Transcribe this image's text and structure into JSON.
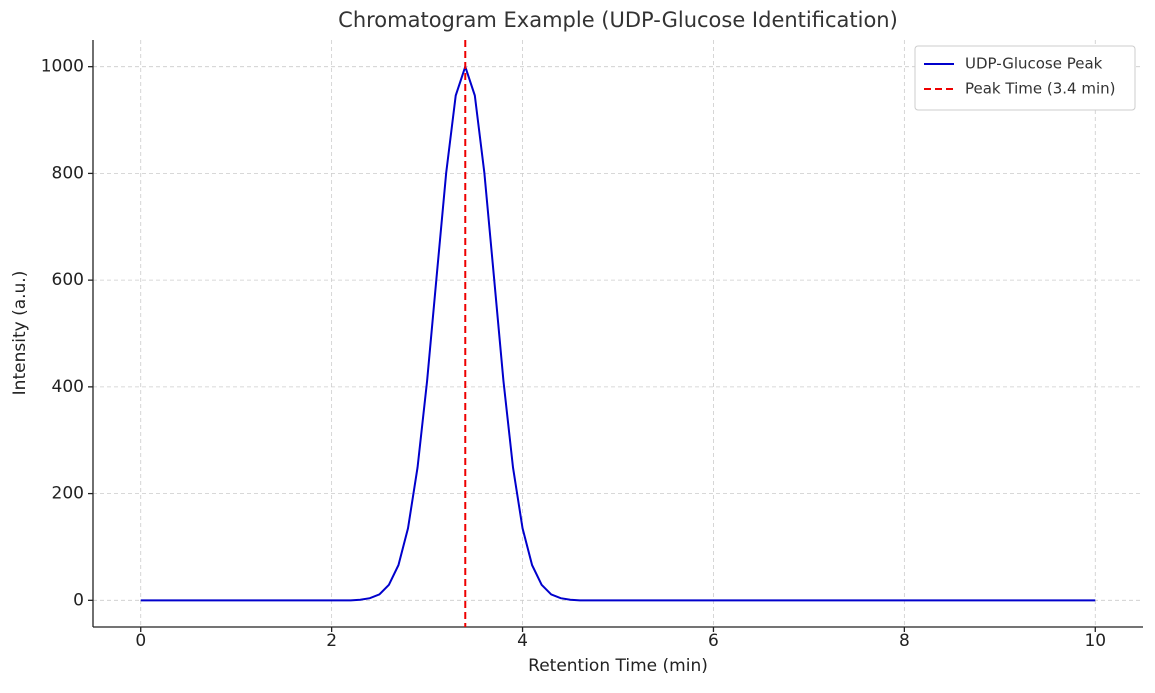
{
  "chart_data": {
    "type": "line",
    "title": "Chromatogram Example (UDP-Glucose Identification)",
    "x_label": "Retention Time (min)",
    "y_label": "Intensity (a.u.)",
    "x": [
      0,
      1,
      2,
      2.2,
      2.3,
      2.4,
      2.5,
      2.6,
      2.7,
      2.8,
      2.9,
      3.0,
      3.1,
      3.2,
      3.3,
      3.4,
      3.5,
      3.6,
      3.7,
      3.8,
      3.9,
      4.0,
      4.1,
      4.2,
      4.3,
      4.4,
      4.5,
      4.6,
      5,
      6,
      7,
      8,
      9,
      10
    ],
    "series": [
      {
        "name": "UDP-Glucose Peak",
        "color": "#0000cc",
        "values": [
          0,
          0,
          0,
          0,
          1,
          4,
          11,
          29,
          66,
          135,
          249,
          411,
          607,
          801,
          946,
          1000,
          946,
          801,
          607,
          411,
          249,
          135,
          66,
          29,
          11,
          4,
          1,
          0,
          0,
          0,
          0,
          0,
          0,
          0
        ]
      }
    ],
    "reference_lines": [
      {
        "name": "Peak Time (3.4 min)",
        "x": 3.4,
        "color": "#ee0000",
        "style": "dashed"
      }
    ],
    "xlim": [
      -0.5,
      10.5
    ],
    "xticks": [
      0,
      2,
      4,
      6,
      8,
      10
    ],
    "ylim": [
      -50,
      1050
    ],
    "yticks": [
      0,
      200,
      400,
      600,
      800,
      1000
    ],
    "grid": true,
    "legend": "upper right"
  }
}
